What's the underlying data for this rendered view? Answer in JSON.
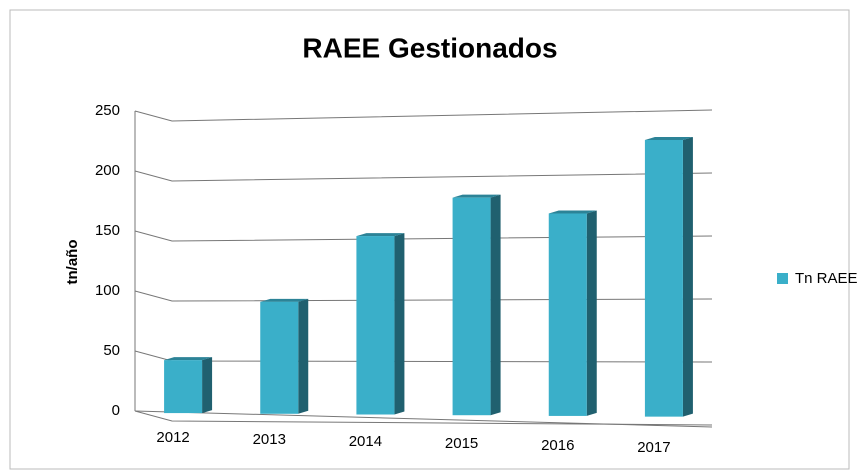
{
  "chart_data": {
    "type": "bar",
    "title": "RAEE Gestionados",
    "y_label": "tn/año",
    "categories": [
      "2012",
      "2013",
      "2014",
      "2015",
      "2016",
      "2017"
    ],
    "series": [
      {
        "name": "Tn RAEE",
        "color": "#3aafc9",
        "values": [
          42,
          88,
          139,
          168,
          155,
          210
        ]
      }
    ],
    "ylim": [
      0,
      250
    ],
    "yticks": [
      0,
      50,
      100,
      150,
      200,
      250
    ],
    "grid": true,
    "legend": "right"
  }
}
